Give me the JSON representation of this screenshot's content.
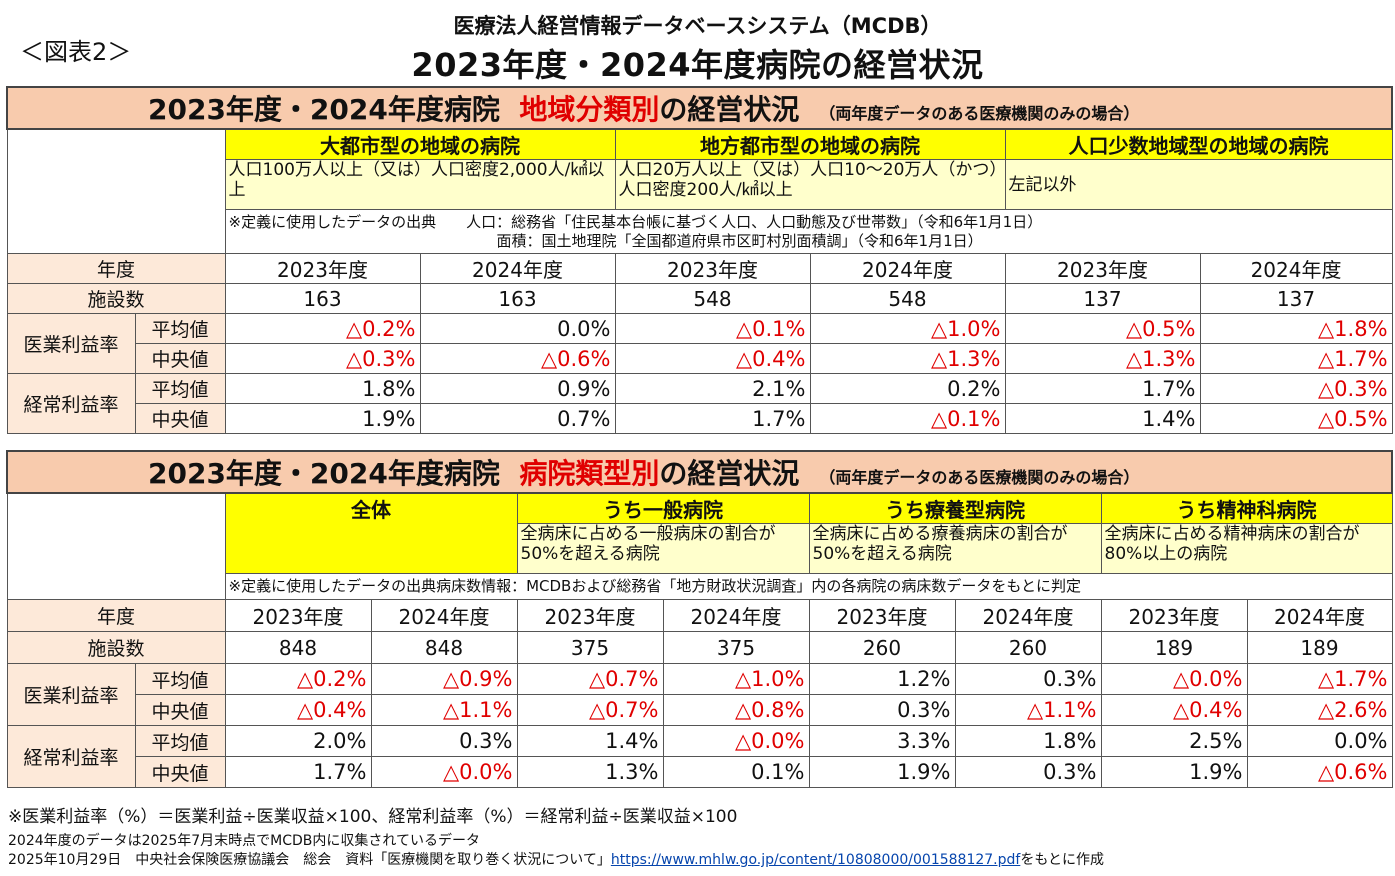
{
  "figure_label": "＜図表2＞",
  "header": {
    "line1": "医療法人経営情報データベースシステム（MCDB）",
    "line2": "2023年度・2024年度病院の経営状況"
  },
  "table1": {
    "title_prefix": "2023年度・2024年度病院",
    "title_red": "地域分類別",
    "title_suffix": "の経営状況",
    "title_note": "（両年度データのある医療機関のみの場合）",
    "groups": [
      {
        "name": "大都市型の地域の病院",
        "desc": "人口100万人以上（又は）人口密度2,000人/㎢以上"
      },
      {
        "name": "地方都市型の地域の病院",
        "desc": "人口20万人以上（又は）人口10～20万人（かつ）人口密度200人/㎢以上"
      },
      {
        "name": "人口少数地域型の地域の病院",
        "desc": "左記以外"
      }
    ],
    "note_line1": "※定義に使用したデータの出典　　人口：総務省「住民基本台帳に基づく人口、人口動態及び世帯数」（令和6年1月1日）",
    "note_line2": "面積：国土地理院「全国都道府県市区町村別面積調」（令和6年1月1日）",
    "year_label": "年度",
    "facility_label": "施設数",
    "med_label": "医業利益率",
    "ord_label": "経常利益率",
    "avg_label": "平均値",
    "median_label": "中央値",
    "years": [
      "2023年度",
      "2024年度",
      "2023年度",
      "2024年度",
      "2023年度",
      "2024年度"
    ],
    "facilities": [
      "163",
      "163",
      "548",
      "548",
      "137",
      "137"
    ],
    "med_avg": [
      "△0.2%",
      "0.0%",
      "△0.1%",
      "△1.0%",
      "△0.5%",
      "△1.8%"
    ],
    "med_median": [
      "△0.3%",
      "△0.6%",
      "△0.4%",
      "△1.3%",
      "△1.3%",
      "△1.7%"
    ],
    "ord_avg": [
      "1.8%",
      "0.9%",
      "2.1%",
      "0.2%",
      "1.7%",
      "△0.3%"
    ],
    "ord_median": [
      "1.9%",
      "0.7%",
      "1.7%",
      "△0.1%",
      "1.4%",
      "△0.5%"
    ]
  },
  "table2": {
    "title_prefix": "2023年度・2024年度病院",
    "title_red": "病院類型別",
    "title_suffix": "の経営状況",
    "title_note": "（両年度データのある医療機関のみの場合）",
    "groups": [
      {
        "name": "全体",
        "desc": ""
      },
      {
        "name": "うち一般病院",
        "desc": "全病床に占める一般病床の割合が50%を超える病院"
      },
      {
        "name": "うち療養型病院",
        "desc": "全病床に占める療養病床の割合が50%を超える病院"
      },
      {
        "name": "うち精神科病院",
        "desc": "全病床に占める精神病床の割合が80%以上の病院"
      }
    ],
    "note_line1": "※定義に使用したデータの出典病床数情報：MCDBおよび総務省「地方財政状況調査」内の各病院の病床数データをもとに判定",
    "year_label": "年度",
    "facility_label": "施設数",
    "med_label": "医業利益率",
    "ord_label": "経常利益率",
    "avg_label": "平均値",
    "median_label": "中央値",
    "years": [
      "2023年度",
      "2024年度",
      "2023年度",
      "2024年度",
      "2023年度",
      "2024年度",
      "2023年度",
      "2024年度"
    ],
    "facilities": [
      "848",
      "848",
      "375",
      "375",
      "260",
      "260",
      "189",
      "189"
    ],
    "med_avg": [
      "△0.2%",
      "△0.9%",
      "△0.7%",
      "△1.0%",
      "1.2%",
      "0.3%",
      "△0.0%",
      "△1.7%"
    ],
    "med_median": [
      "△0.4%",
      "△1.1%",
      "△0.7%",
      "△0.8%",
      "0.3%",
      "△1.1%",
      "△0.4%",
      "△2.6%"
    ],
    "ord_avg": [
      "2.0%",
      "0.3%",
      "1.4%",
      "△0.0%",
      "3.3%",
      "1.8%",
      "2.5%",
      "0.0%"
    ],
    "ord_median": [
      "1.7%",
      "△0.0%",
      "1.3%",
      "0.1%",
      "1.9%",
      "0.3%",
      "1.9%",
      "△0.6%"
    ]
  },
  "footer": {
    "line1": "※医業利益率（%）＝医業利益÷医業収益×100、経常利益率（%）＝経常利益÷医業収益×100",
    "line2": "2024年度のデータは2025年7月末時点でMCDB内に収集されているデータ",
    "line3_prefix": "2025年10月29日　中央社会保険医療協議会　総会　資料「医療機関を取り巻く状況について」",
    "line3_link": "https://www.mhlw.go.jp/content/10808000/001588127.pdf",
    "line3_suffix": "をもとに作成"
  },
  "colors": {
    "negative": "#e00000",
    "title_bg": "#f8cbad",
    "group_header_bg": "#ffff00",
    "group_desc_bg": "#ffffcc",
    "label_bg": "#fde9d9"
  }
}
